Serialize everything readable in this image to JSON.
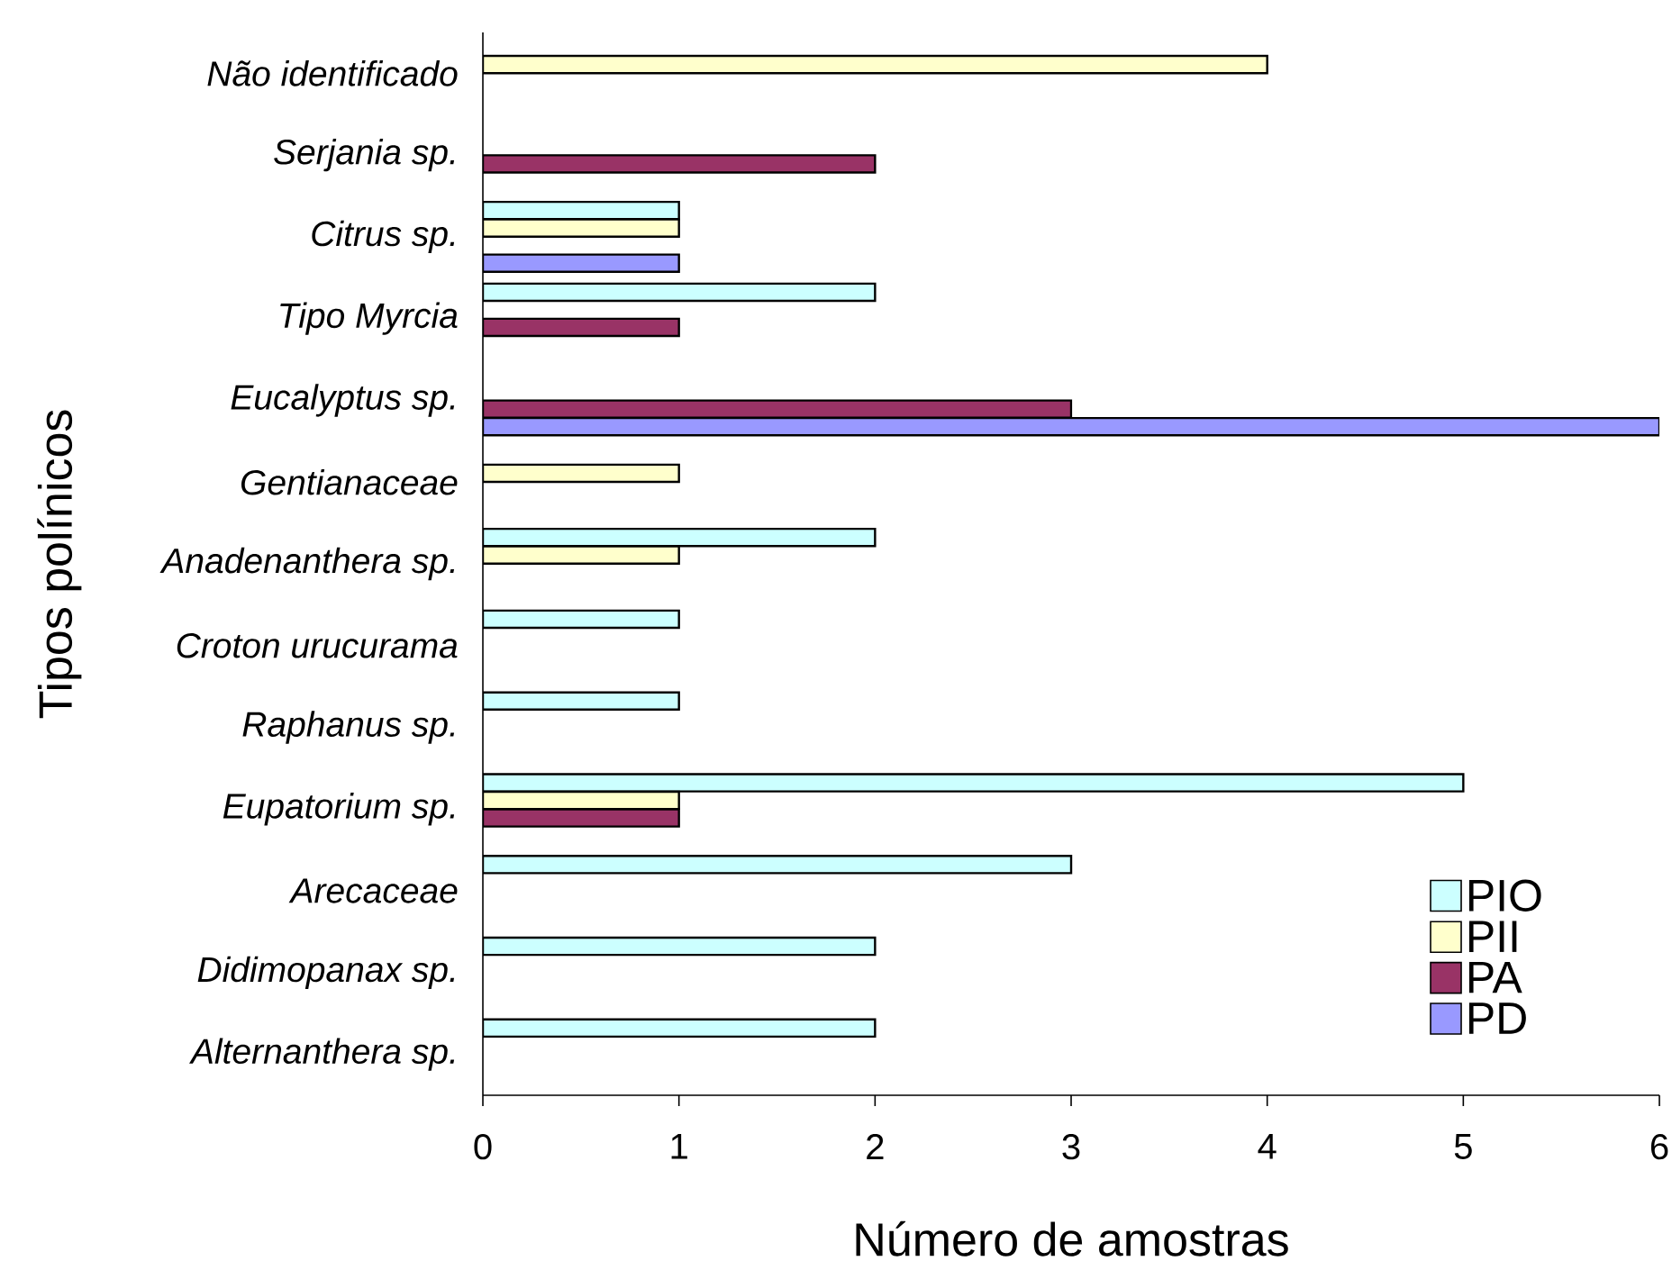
{
  "chart_data": {
    "type": "bar",
    "orientation": "horizontal",
    "xlabel": "Número de amostras",
    "ylabel": "Tipos polínicos",
    "categories": [
      "Não identificado",
      "Serjania sp.",
      "Citrus sp.",
      "Tipo Myrcia",
      "Eucalyptus sp.",
      "Gentianaceae",
      "Anadenanthera sp.",
      "Croton urucurama",
      "Raphanus sp.",
      "Eupatorium sp.",
      "Arecaceae",
      "Didimopanax sp.",
      "Alternanthera sp."
    ],
    "series": [
      {
        "name": "PIO",
        "color": "#ccffff",
        "values": [
          null,
          null,
          1,
          2,
          null,
          null,
          2,
          1,
          1,
          5,
          3,
          2,
          2
        ]
      },
      {
        "name": "PII",
        "color": "#ffffcc",
        "values": [
          4,
          null,
          1,
          null,
          null,
          1,
          1,
          null,
          null,
          1,
          null,
          null,
          null
        ]
      },
      {
        "name": "PA",
        "color": "#993366",
        "values": [
          null,
          2,
          null,
          1,
          3,
          null,
          null,
          null,
          null,
          1,
          null,
          null,
          null
        ]
      },
      {
        "name": "PD",
        "color": "#9999ff",
        "values": [
          null,
          null,
          1,
          null,
          6,
          null,
          null,
          null,
          null,
          null,
          null,
          null,
          null
        ]
      }
    ],
    "xlim": [
      0,
      6
    ],
    "xticks": [
      0,
      1,
      2,
      3,
      4,
      5,
      6
    ],
    "grid": false,
    "legend": "bottom right"
  }
}
